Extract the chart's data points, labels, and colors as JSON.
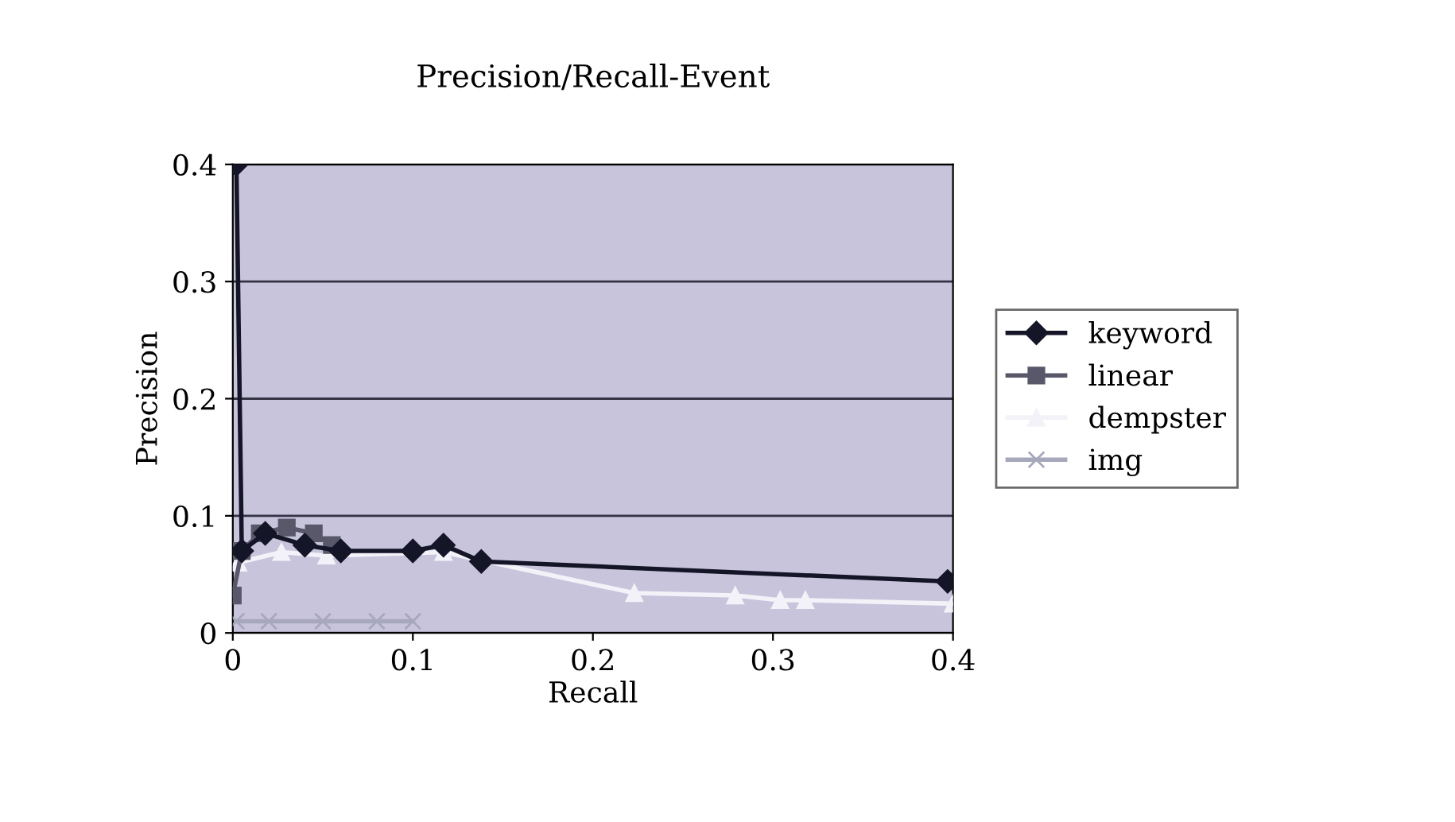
{
  "chart_data": {
    "type": "line",
    "title": "Precision/Recall-Event",
    "xlabel": "Recall",
    "ylabel": "Precision",
    "xlim": [
      0,
      0.4
    ],
    "ylim": [
      0,
      0.4
    ],
    "xticks": [
      0,
      0.1,
      0.2,
      0.3,
      0.4
    ],
    "yticks": [
      0,
      0.1,
      0.2,
      0.3,
      0.4
    ],
    "grid": "y",
    "legend": "right",
    "series": [
      {
        "name": "keyword",
        "color": "#151528",
        "marker": "diamond",
        "x": [
          0.002,
          0.005,
          0.018,
          0.04,
          0.06,
          0.1,
          0.117,
          0.138,
          0.397
        ],
        "values": [
          0.4,
          0.07,
          0.085,
          0.075,
          0.07,
          0.07,
          0.075,
          0.061,
          0.044
        ]
      },
      {
        "name": "linear",
        "color": "#58586a",
        "marker": "square",
        "x": [
          0.0,
          0.005,
          0.015,
          0.03,
          0.045,
          0.055
        ],
        "values": [
          0.032,
          0.07,
          0.085,
          0.09,
          0.085,
          0.075
        ]
      },
      {
        "name": "dempster",
        "color": "#f2f2f8",
        "marker": "triangle",
        "x": [
          0.003,
          0.027,
          0.052,
          0.117,
          0.223,
          0.279,
          0.304,
          0.318,
          0.4
        ],
        "values": [
          0.06,
          0.069,
          0.066,
          0.069,
          0.034,
          0.032,
          0.028,
          0.028,
          0.025
        ]
      },
      {
        "name": "img",
        "color": "#a8a8bc",
        "marker": "cross",
        "x": [
          0.002,
          0.02,
          0.05,
          0.08,
          0.1
        ],
        "values": [
          0.01,
          0.01,
          0.01,
          0.01,
          0.01
        ]
      }
    ]
  }
}
